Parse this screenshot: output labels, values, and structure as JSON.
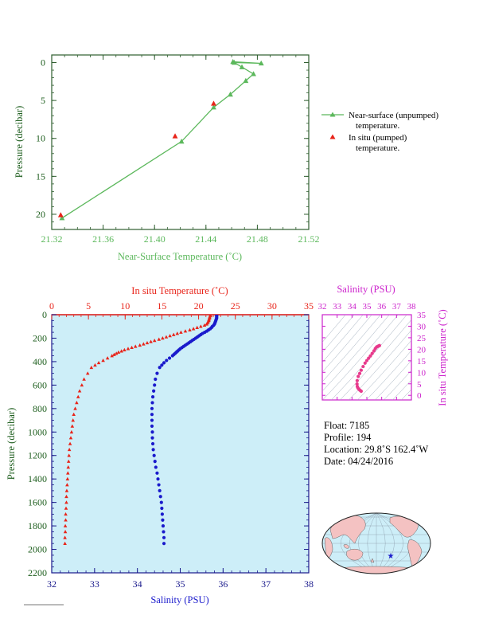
{
  "colors": {
    "green": "#5cb85c",
    "red": "#e8241a",
    "blue": "#1a1acc",
    "magenta": "#cc22cc",
    "navy": "#1a1a8c",
    "dark_green": "#1f5f1f",
    "panel_bg": "#cdeef8",
    "land": "#f4c2c2"
  },
  "top_chart": {
    "xlabel": "Near-Surface Temperature (˚C)",
    "ylabel": "Pressure (decibar)",
    "x_ticks": [
      "21.32",
      "21.36",
      "21.40",
      "21.44",
      "21.48",
      "21.52"
    ],
    "y_ticks": [
      "0",
      "5",
      "10",
      "15",
      "20"
    ],
    "legend": [
      {
        "label_1": "Near-surface (unpumped)",
        "label_2": "temperature."
      },
      {
        "label_1": "In situ (pumped)",
        "label_2": "temperature."
      }
    ]
  },
  "chart_data": [
    {
      "type": "line",
      "xlabel": "Near-Surface Temperature (˚C)",
      "ylabel": "Pressure (decibar)",
      "xlim": [
        21.32,
        21.52
      ],
      "ylim": [
        22,
        -1
      ],
      "grid": false,
      "legend_position": "right",
      "series": [
        {
          "name": "Near-surface (unpumped) temperature.",
          "marker": "triangle-green",
          "x": [
            21.461,
            21.483,
            21.462,
            21.468,
            21.477,
            21.471,
            21.459,
            21.446,
            21.421,
            21.328
          ],
          "y": [
            -0.1,
            0.1,
            0.0,
            0.6,
            1.5,
            2.4,
            4.2,
            5.9,
            10.4,
            20.5
          ]
        },
        {
          "name": "In situ (pumped) temperature.",
          "marker": "triangle-red",
          "x": [
            21.446,
            21.416,
            21.327
          ],
          "y": [
            5.4,
            9.7,
            20.1
          ]
        }
      ]
    },
    {
      "type": "scatter",
      "xlabel": "Salinity (PSU)",
      "x2label": "In situ Temperature (˚C)",
      "ylabel": "Pressure (decibar)",
      "xlim": [
        32,
        38
      ],
      "x2lim": [
        0,
        35
      ],
      "ylim": [
        2200,
        0
      ],
      "series": [
        {
          "name": "In situ Temperature (˚C)",
          "axis": "top",
          "pressure": [
            5,
            10,
            20,
            30,
            40,
            50,
            60,
            70,
            80,
            90,
            100,
            110,
            120,
            130,
            140,
            150,
            160,
            170,
            180,
            190,
            200,
            210,
            220,
            230,
            240,
            250,
            260,
            270,
            280,
            290,
            300,
            310,
            320,
            330,
            340,
            350,
            370,
            390,
            410,
            430,
            450,
            500,
            550,
            600,
            650,
            700,
            750,
            800,
            850,
            900,
            950,
            1000,
            1050,
            1100,
            1150,
            1200,
            1250,
            1300,
            1350,
            1400,
            1450,
            1500,
            1550,
            1600,
            1650,
            1700,
            1750,
            1800,
            1850,
            1900,
            1950
          ],
          "values": [
            21.6,
            21.6,
            21.5,
            21.5,
            21.4,
            21.4,
            21.3,
            21.2,
            21.1,
            20.8,
            20.3,
            19.8,
            19.3,
            18.8,
            18.2,
            17.6,
            17.1,
            16.6,
            16.1,
            15.6,
            15.1,
            14.6,
            14.0,
            13.5,
            13.0,
            12.5,
            12.0,
            11.4,
            10.9,
            10.4,
            9.9,
            9.5,
            9.1,
            8.8,
            8.5,
            8.2,
            7.6,
            7.0,
            6.4,
            5.9,
            5.4,
            4.9,
            4.4,
            4.1,
            3.8,
            3.6,
            3.4,
            3.2,
            3.0,
            2.9,
            2.8,
            2.7,
            2.6,
            2.5,
            2.4,
            2.35,
            2.3,
            2.25,
            2.2,
            2.15,
            2.1,
            2.05,
            2.0,
            2.0,
            1.95,
            1.9,
            1.9,
            1.85,
            1.85,
            1.8,
            1.8
          ]
        },
        {
          "name": "Salinity (PSU)",
          "axis": "bottom",
          "pressure": [
            5,
            10,
            20,
            30,
            40,
            50,
            60,
            70,
            80,
            90,
            100,
            110,
            120,
            130,
            140,
            150,
            160,
            170,
            180,
            190,
            200,
            210,
            220,
            230,
            240,
            250,
            260,
            270,
            280,
            290,
            300,
            310,
            320,
            330,
            340,
            350,
            370,
            390,
            410,
            430,
            450,
            500,
            550,
            600,
            650,
            700,
            750,
            800,
            850,
            900,
            950,
            1000,
            1050,
            1100,
            1150,
            1200,
            1250,
            1300,
            1350,
            1400,
            1450,
            1500,
            1550,
            1600,
            1650,
            1700,
            1750,
            1800,
            1850,
            1900,
            1950
          ],
          "values": [
            35.85,
            35.85,
            35.85,
            35.85,
            35.84,
            35.83,
            35.82,
            35.81,
            35.8,
            35.78,
            35.75,
            35.73,
            35.7,
            35.66,
            35.62,
            35.57,
            35.52,
            35.48,
            35.44,
            35.4,
            35.36,
            35.32,
            35.28,
            35.24,
            35.2,
            35.16,
            35.12,
            35.08,
            35.04,
            35.0,
            34.97,
            34.94,
            34.91,
            34.88,
            34.85,
            34.82,
            34.75,
            34.68,
            34.62,
            34.57,
            34.52,
            34.46,
            34.42,
            34.4,
            34.38,
            34.36,
            34.35,
            34.34,
            34.34,
            34.34,
            34.34,
            34.35,
            34.35,
            34.36,
            34.37,
            34.39,
            34.41,
            34.43,
            34.46,
            34.48,
            34.5,
            34.52,
            34.54,
            34.56,
            34.57,
            34.58,
            34.59,
            34.6,
            34.61,
            34.62,
            34.62
          ]
        }
      ]
    },
    {
      "type": "scatter",
      "xlabel": "Salinity (PSU)",
      "ylabel": "In situ Temperature (˚C)",
      "xlim": [
        32,
        38
      ],
      "ylim": [
        -2,
        35
      ],
      "series": [
        {
          "name": "T-S",
          "x": [
            34.62,
            34.58,
            34.52,
            34.46,
            34.4,
            34.36,
            34.34,
            34.35,
            34.42,
            34.52,
            34.62,
            34.75,
            34.88,
            35.0,
            35.12,
            35.24,
            35.36,
            35.48,
            35.57,
            35.66,
            35.75,
            35.82,
            35.85
          ],
          "y": [
            1.8,
            2.0,
            2.3,
            2.7,
            3.2,
            3.8,
            4.9,
            6.4,
            8.2,
            9.5,
            10.9,
            12.5,
            14.0,
            15.1,
            16.1,
            17.1,
            18.2,
            19.3,
            20.3,
            21.0,
            21.3,
            21.5,
            21.6
          ]
        }
      ]
    }
  ],
  "bottom_chart": {
    "top_axis_label": "In situ Temperature (˚C)",
    "bottom_axis_label": "Salinity (PSU)",
    "ylabel": "Pressure (decibar)",
    "temp_ticks": [
      "0",
      "5",
      "10",
      "15",
      "20",
      "25",
      "30",
      "35"
    ],
    "sal_ticks": [
      "32",
      "33",
      "34",
      "35",
      "36",
      "37",
      "38"
    ],
    "p_ticks": [
      "0",
      "200",
      "400",
      "600",
      "800",
      "1000",
      "1200",
      "1400",
      "1600",
      "1800",
      "2000",
      "2200"
    ]
  },
  "ts_chart": {
    "top_label": "Salinity (PSU)",
    "right_label": "In situ Temperature (˚C)",
    "sal_ticks": [
      "32",
      "33",
      "34",
      "35",
      "36",
      "37",
      "38"
    ],
    "temp_ticks": [
      "0",
      "5",
      "10",
      "15",
      "20",
      "25",
      "30",
      "35"
    ]
  },
  "info": {
    "float": "Float:  7185",
    "profile": "Profile:  194",
    "location": "Location:  29.8˚S  162.4˚W",
    "date": "Date:  04/24/2016"
  }
}
